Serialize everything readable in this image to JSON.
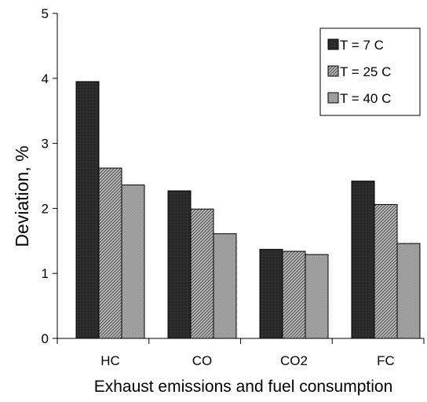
{
  "chart_data": {
    "type": "bar",
    "title": "",
    "xlabel": "Exhaust emissions and fuel consumption",
    "ylabel": "Deviation, %",
    "categories": [
      "HC",
      "CO",
      "CO2",
      "FC"
    ],
    "ylim": [
      0,
      5
    ],
    "yticks": [
      0,
      1,
      2,
      3,
      4,
      5
    ],
    "grid": false,
    "legend_position": "top-right",
    "series": [
      {
        "name": "T = 7 C",
        "values": [
          3.95,
          2.27,
          1.37,
          2.42
        ],
        "color": "#262626",
        "pattern": "solid-dark"
      },
      {
        "name": "T = 25 C",
        "values": [
          2.62,
          1.99,
          1.34,
          2.06
        ],
        "color": "#8c8c8c",
        "pattern": "diagonal-hatch"
      },
      {
        "name": "T = 40 C",
        "values": [
          2.36,
          1.61,
          1.29,
          1.46
        ],
        "color": "#9a9a9a",
        "pattern": "fine-stipple"
      }
    ]
  }
}
